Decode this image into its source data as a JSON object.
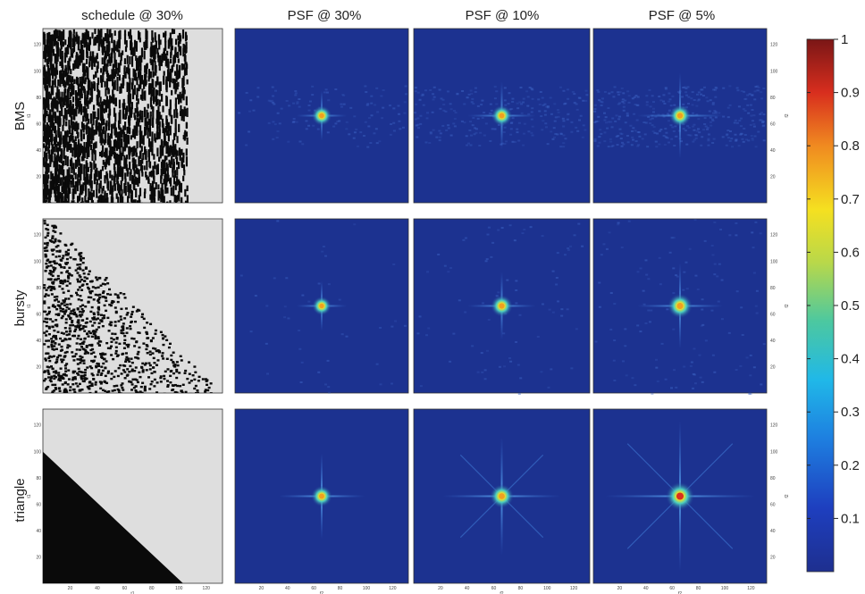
{
  "figure": {
    "columns": [
      "schedule @ 30%",
      "PSF @ 30%",
      "PSF @ 10%",
      "PSF @ 5%"
    ],
    "rows": [
      "BMS",
      "bursty",
      "triangle"
    ],
    "axis_ticks": [
      "20",
      "40",
      "60",
      "80",
      "100",
      "120"
    ],
    "axis_x_label": "t1",
    "axis_y_label": "t1",
    "psf_axis_label": "f2"
  },
  "colorbar": {
    "ticks": [
      "1",
      "0.9",
      "0.8",
      "0.7",
      "0.6",
      "0.5",
      "0.4",
      "0.3",
      "0.2",
      "0.1"
    ],
    "range": [
      0,
      1
    ],
    "colormap": "jet"
  },
  "colors": {
    "psf_background": "#1c3290",
    "schedule_sampled": "#0a0a0a",
    "schedule_unsampled": "#dedede"
  },
  "psf_peaks": {
    "BMS": [
      0.55,
      0.6,
      0.65
    ],
    "bursty": [
      0.5,
      0.65,
      0.8
    ],
    "triangle": [
      0.6,
      0.75,
      1.0
    ]
  },
  "schedule_types": [
    "bms-pattern",
    "bursty-pattern",
    "triangle-pattern"
  ]
}
